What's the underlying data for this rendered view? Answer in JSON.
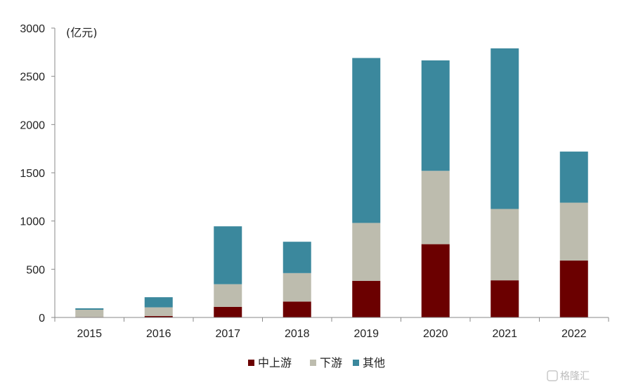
{
  "chart_data": {
    "type": "bar",
    "stacked": true,
    "unit_label": "(亿元)",
    "categories": [
      "2015",
      "2016",
      "2017",
      "2018",
      "2019",
      "2020",
      "2021",
      "2022"
    ],
    "series": [
      {
        "name": "中上游",
        "color": "#6b0000",
        "values": [
          5,
          15,
          110,
          165,
          380,
          760,
          385,
          590
        ]
      },
      {
        "name": "下游",
        "color": "#bdbcae",
        "values": [
          75,
          90,
          235,
          295,
          600,
          760,
          740,
          600
        ]
      },
      {
        "name": "其他",
        "color": "#3b889d",
        "values": [
          15,
          105,
          600,
          325,
          1710,
          1145,
          1665,
          530
        ]
      }
    ],
    "ylim": [
      0,
      3000
    ],
    "yticks": [
      0,
      500,
      1000,
      1500,
      2000,
      2500,
      3000
    ],
    "grid": false,
    "legend_position": "bottom"
  },
  "watermark": {
    "text": "格隆汇"
  }
}
